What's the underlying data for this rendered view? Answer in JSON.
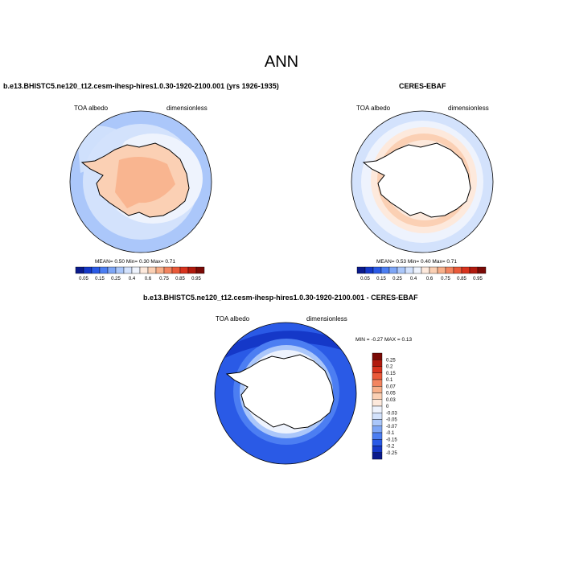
{
  "title": "ANN",
  "panel_left": {
    "case": "b.e13.BHISTC5.ne120_t12.cesm-ihesp-hires1.0.30-1920-2100.001 (yrs 1926-1935)",
    "var": "TOA albedo",
    "units": "dimensionless",
    "mean_label": "MEAN=",
    "mean": "0.50",
    "min_label": "Min=",
    "min": "0.30",
    "max_label": "Max=",
    "max": "0.71"
  },
  "panel_right": {
    "case": "CERES-EBAF",
    "var": "TOA albedo",
    "units": "dimensionless",
    "mean_label": "MEAN=",
    "mean": "0.53",
    "min_label": "Min=",
    "min": "0.40",
    "max_label": "Max=",
    "max": "0.71"
  },
  "panel_diff": {
    "case": "b.e13.BHISTC5.ne120_t12.cesm-ihesp-hires1.0.30-1920-2100.001 - CERES-EBAF",
    "var": "TOA albedo",
    "units": "dimensionless",
    "min_label": "MIN =",
    "min": "-0.27",
    "max_label": "MAX =",
    "max": "0.13"
  },
  "colorbar_abs": {
    "labels": [
      "0.05",
      "0.15",
      "0.25",
      "0.4",
      "0.6",
      "0.75",
      "0.85",
      "0.95"
    ],
    "colors": [
      "#0a1a8c",
      "#1538c8",
      "#2a5ae6",
      "#4c7ef2",
      "#7ea6f6",
      "#abc7fa",
      "#d3e2fc",
      "#eef3fd",
      "#fde9dc",
      "#fbd0b4",
      "#f8b08a",
      "#f38560",
      "#ea5a3a",
      "#d8331e",
      "#b11a0e",
      "#7a0a06"
    ]
  },
  "colorbar_diff": {
    "labels": [
      "0.25",
      "0.2",
      "0.15",
      "0.1",
      "0.07",
      "0.05",
      "0.03",
      "0",
      "-0.03",
      "-0.05",
      "-0.07",
      "-0.1",
      "-0.15",
      "-0.2",
      "-0.25"
    ],
    "colors": [
      "#7a0a06",
      "#b11a0e",
      "#d8331e",
      "#ea5a3a",
      "#f38560",
      "#f8b08a",
      "#fbd0b4",
      "#fde9dc",
      "#eef3fd",
      "#d3e2fc",
      "#abc7fa",
      "#7ea6f6",
      "#4c7ef2",
      "#2a5ae6",
      "#1538c8",
      "#0a1a8c"
    ]
  }
}
